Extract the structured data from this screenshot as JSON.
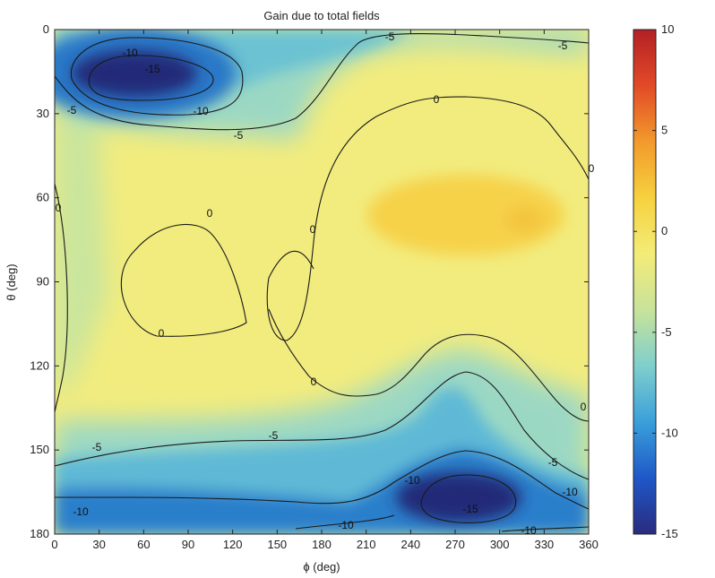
{
  "chart_data": {
    "type": "heatmap",
    "title": "Gain due to total fields",
    "xlabel": "ϕ (deg)",
    "ylabel": "θ (deg)",
    "xlim": [
      0,
      360
    ],
    "ylim": [
      0,
      180
    ],
    "y_reversed": true,
    "x_ticks": [
      "0",
      "30",
      "60",
      "90",
      "120",
      "150",
      "180",
      "210",
      "240",
      "270",
      "300",
      "330",
      "360"
    ],
    "y_ticks": [
      "0",
      "30",
      "60",
      "90",
      "120",
      "150",
      "180"
    ],
    "colorbar": {
      "min": -15,
      "max": 10,
      "ticks": [
        "10",
        "5",
        "0",
        "-5",
        "-10",
        "-15"
      ],
      "colors": [
        "#2b2b7e",
        "#1e58c8",
        "#3aa0da",
        "#7fcfcc",
        "#c8e39a",
        "#f3ec78",
        "#f6d13f",
        "#f29a2c",
        "#e24a26",
        "#b32025"
      ]
    },
    "contour_levels": [
      -15,
      -10,
      -5,
      0
    ],
    "contour_labels": [
      "-15",
      "-10",
      "-10",
      "-5",
      "-5",
      "0",
      "0",
      "0",
      "0",
      "0",
      "0",
      "0",
      "0",
      "-5",
      "-5",
      "-5",
      "-10",
      "-15",
      "-10",
      "-10",
      "-10",
      "-10",
      "-5",
      "-5"
    ],
    "features": [
      {
        "phi": 78,
        "theta": 20,
        "value": -16
      },
      {
        "phi": 268,
        "theta": 168,
        "value": -16
      },
      {
        "phi": 265,
        "theta": 65,
        "value": 1.5
      },
      {
        "phi": 310,
        "theta": 70,
        "value": 2
      }
    ]
  }
}
